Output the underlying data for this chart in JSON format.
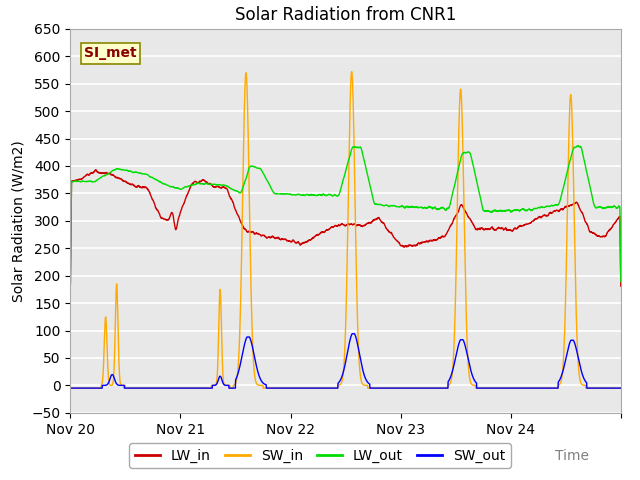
{
  "title": "Solar Radiation from CNR1",
  "ylabel": "Solar Radiation (W/m2)",
  "ylim": [
    -50,
    625
  ],
  "xtick_labels": [
    "Nov 20",
    "Nov 21",
    "Nov 22",
    "Nov 23",
    "Nov 24",
    ""
  ],
  "legend_label": "SI_met",
  "line_colors": {
    "LW_in": "#cc0000",
    "SW_in": "#ffaa00",
    "LW_out": "#00dd00",
    "SW_out": "#0000ff"
  },
  "plot_bg_color": "#e8e8e8",
  "title_fontsize": 12,
  "axis_fontsize": 10,
  "tick_fontsize": 10,
  "legend_fontsize": 10,
  "n_points": 3000
}
